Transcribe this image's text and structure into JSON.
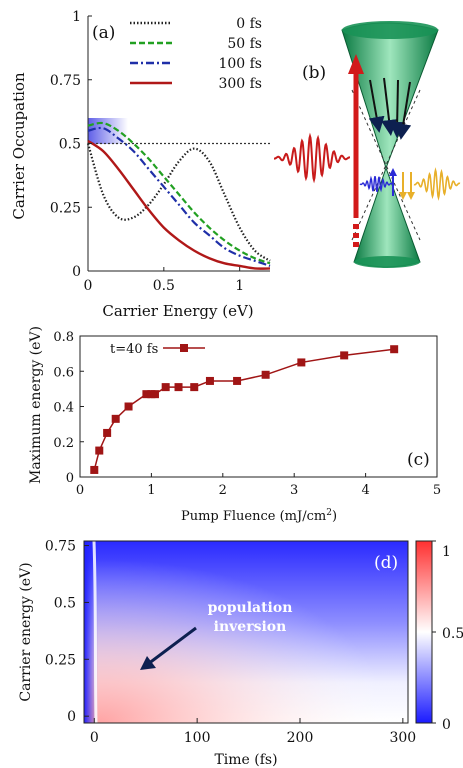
{
  "chart_data": [
    {
      "panel": "(a)",
      "type": "line",
      "xlabel": "Carrier Energy  (eV)",
      "ylabel": "Carrier Occupation",
      "xlim": [
        0,
        1.2
      ],
      "ylim": [
        0,
        1
      ],
      "xticks": [
        "0",
        "0.5",
        "1"
      ],
      "yticks": [
        "0",
        "0.25",
        "0.5",
        "0.75",
        "1"
      ],
      "reference_line": {
        "y": 0.5,
        "style": "dotted"
      },
      "legend_position": "top-right",
      "series": [
        {
          "name": "0 fs",
          "style": "dotted",
          "color": "#222222",
          "x": [
            0,
            0.1,
            0.2,
            0.3,
            0.4,
            0.5,
            0.6,
            0.7,
            0.8,
            0.9,
            1.0,
            1.1,
            1.2
          ],
          "y": [
            0.5,
            0.3,
            0.21,
            0.21,
            0.26,
            0.34,
            0.43,
            0.48,
            0.43,
            0.3,
            0.17,
            0.08,
            0.04
          ]
        },
        {
          "name": "50 fs",
          "style": "dashed",
          "color": "#22a022",
          "x": [
            0,
            0.1,
            0.2,
            0.3,
            0.4,
            0.5,
            0.6,
            0.7,
            0.8,
            0.9,
            1.0,
            1.1,
            1.2
          ],
          "y": [
            0.57,
            0.58,
            0.55,
            0.5,
            0.44,
            0.37,
            0.3,
            0.23,
            0.17,
            0.12,
            0.08,
            0.05,
            0.03
          ]
        },
        {
          "name": "100 fs",
          "style": "dashdot",
          "color": "#1f2fa8",
          "x": [
            0,
            0.1,
            0.2,
            0.3,
            0.4,
            0.5,
            0.6,
            0.7,
            0.8,
            0.9,
            1.0,
            1.1,
            1.2
          ],
          "y": [
            0.55,
            0.56,
            0.52,
            0.47,
            0.4,
            0.33,
            0.26,
            0.19,
            0.14,
            0.09,
            0.06,
            0.04,
            0.02
          ]
        },
        {
          "name": "300 fs",
          "style": "solid",
          "color": "#b01818",
          "x": [
            0,
            0.1,
            0.2,
            0.3,
            0.4,
            0.5,
            0.6,
            0.7,
            0.8,
            0.9,
            1.0,
            1.1,
            1.2
          ],
          "y": [
            0.51,
            0.47,
            0.4,
            0.32,
            0.24,
            0.17,
            0.12,
            0.08,
            0.05,
            0.03,
            0.02,
            0.01,
            0.01
          ]
        }
      ]
    },
    {
      "panel": "(b)",
      "type": "other",
      "description_shown": "schematic: light cones with pump and emission pulses"
    },
    {
      "panel": "(c)",
      "type": "line",
      "xlabel": "Pump Fluence (mJ/cm",
      "xlabel_sup": "2",
      "xlabel_tail": ")",
      "ylabel": "Maximum energy (eV)",
      "xlim": [
        0,
        5
      ],
      "ylim": [
        0,
        0.8
      ],
      "xticks": [
        "0",
        "1",
        "2",
        "3",
        "4",
        "5"
      ],
      "yticks": [
        "0",
        "0.2",
        "0.4",
        "0.6",
        "0.8"
      ],
      "legend_position": "top-left",
      "series": [
        {
          "name": "t=40 fs",
          "color": "#a01515",
          "marker": "square",
          "x": [
            0.2,
            0.27,
            0.38,
            0.5,
            0.68,
            0.93,
            1.0,
            1.05,
            1.2,
            1.38,
            1.6,
            1.82,
            2.2,
            2.6,
            3.1,
            3.7,
            4.4
          ],
          "y": [
            0.04,
            0.15,
            0.25,
            0.33,
            0.4,
            0.47,
            0.47,
            0.47,
            0.51,
            0.51,
            0.51,
            0.545,
            0.545,
            0.58,
            0.65,
            0.69,
            0.725
          ]
        }
      ]
    },
    {
      "panel": "(d)",
      "type": "heatmap",
      "xlabel": "Time (fs)",
      "ylabel": "Carrier energy (eV)",
      "xlim": [
        -10,
        305
      ],
      "ylim": [
        -0.03,
        0.77
      ],
      "xticks": [
        "0",
        "100",
        "200",
        "300"
      ],
      "yticks": [
        "0",
        "0.25",
        "0.5",
        "0.75"
      ],
      "colorbar_ticks": [
        "0",
        "0.5",
        "1"
      ],
      "colorbar_range": [
        0,
        1
      ],
      "colormap": [
        "#1a1aff",
        "#ffffff",
        "#ff3030"
      ],
      "annotation": [
        "population",
        "inversion"
      ],
      "arrow_color": "#0d2050"
    }
  ]
}
